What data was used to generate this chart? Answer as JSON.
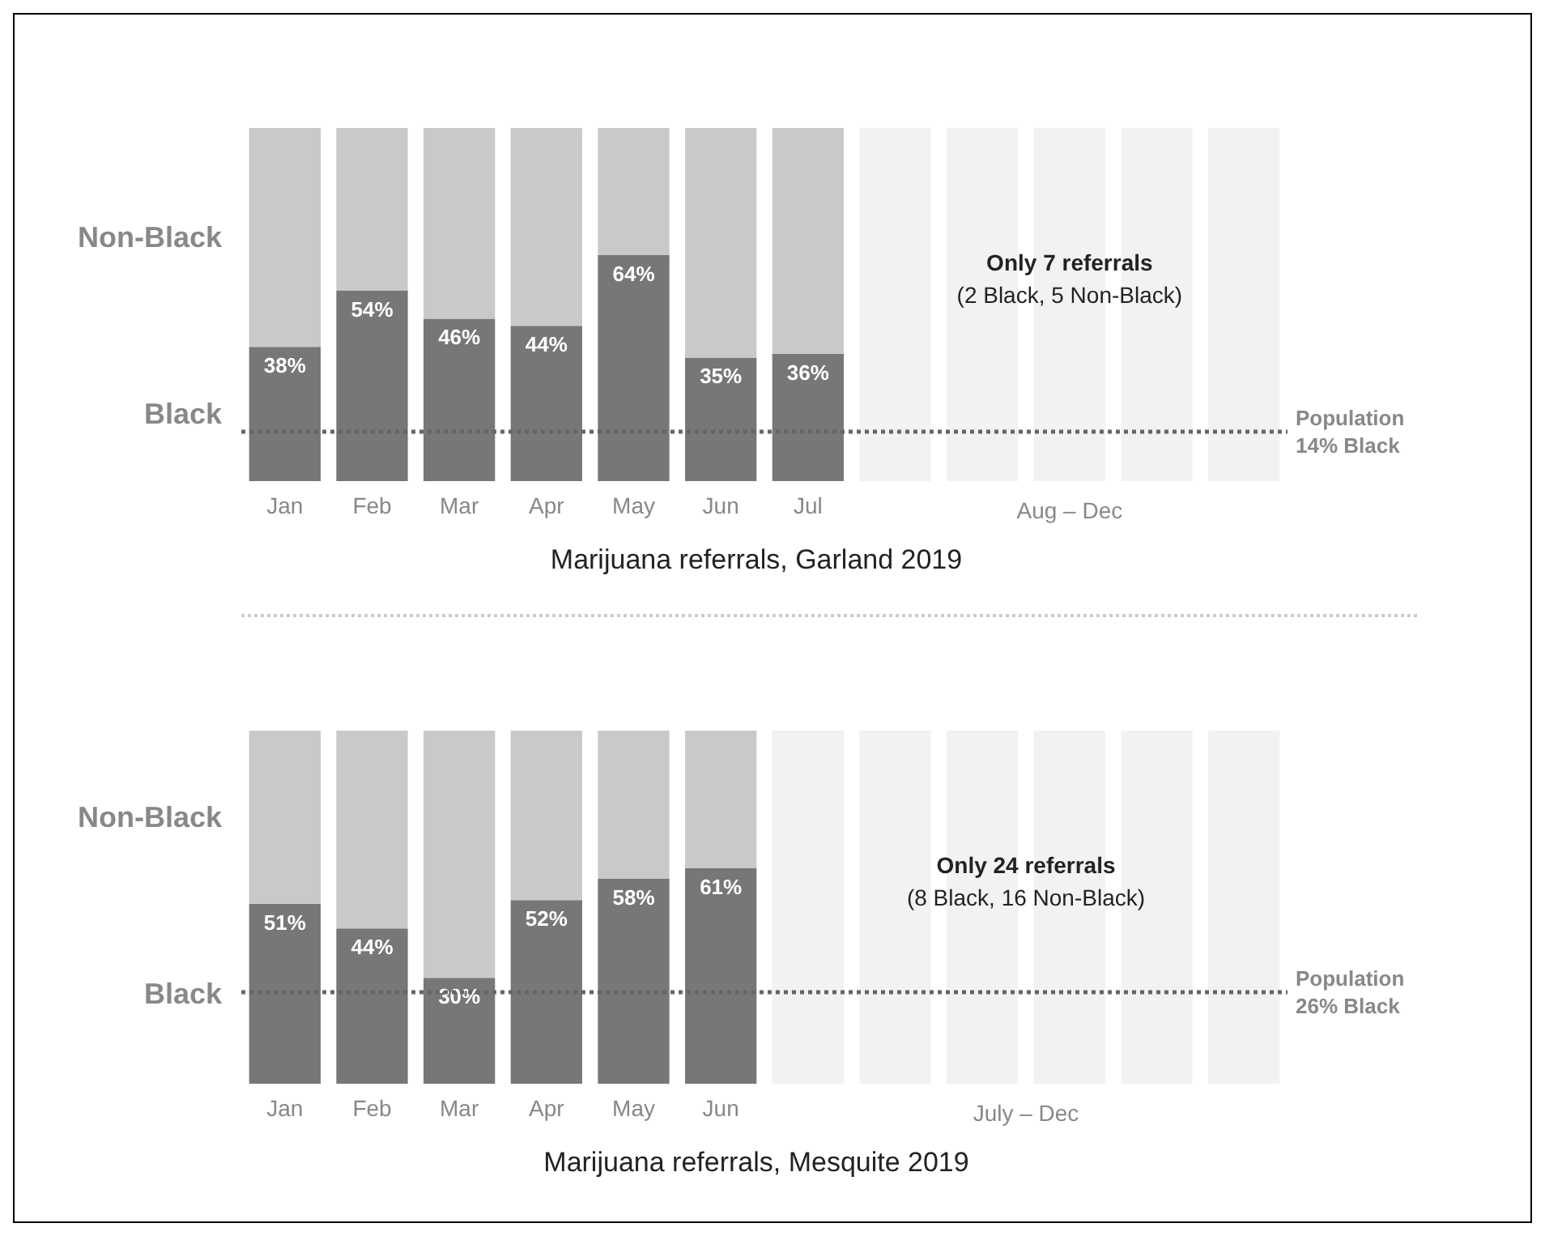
{
  "chart_data": [
    {
      "type": "bar",
      "title": "Marijuana referrals, Garland 2019",
      "categories": [
        "Jan",
        "Feb",
        "Mar",
        "Apr",
        "May",
        "Jun",
        "Jul",
        null,
        null,
        null,
        null,
        null
      ],
      "stacked": true,
      "ylim": [
        0,
        100
      ],
      "tick_labels": "x",
      "grid": false,
      "legend": false,
      "series": [
        {
          "name": "Black",
          "color": "#777777",
          "values": [
            38,
            54,
            46,
            44,
            64,
            35,
            36,
            null,
            null,
            null,
            null,
            null
          ],
          "value_labels": [
            "38%",
            "54%",
            "46%",
            "44%",
            "64%",
            "35%",
            "36%",
            null,
            null,
            null,
            null,
            null
          ]
        },
        {
          "name": "Non-Black",
          "color": "#c9c9c9",
          "values": [
            62,
            46,
            54,
            56,
            36,
            65,
            64,
            null,
            null,
            null,
            null,
            null
          ]
        },
        {
          "color": "#f2f2f2",
          "values": [
            null,
            null,
            null,
            null,
            null,
            null,
            null,
            100,
            100,
            100,
            100,
            100
          ]
        }
      ],
      "ref_lines": [
        {
          "axis": "y",
          "value": 14,
          "label": "Population\n14% Black",
          "line_style": "dotted",
          "color": "#666666"
        }
      ],
      "annotations": [
        "Only 7 referrals\n(2 Black, 5 Non-Black)",
        "Aug – Dec"
      ]
    },
    {
      "type": "bar",
      "title": "Marijuana referrals, Mesquite 2019",
      "categories": [
        "Jan",
        "Feb",
        "Mar",
        "Apr",
        "May",
        "Jun",
        null,
        null,
        null,
        null,
        null,
        null
      ],
      "stacked": true,
      "ylim": [
        0,
        100
      ],
      "tick_labels": "x",
      "grid": false,
      "legend": false,
      "series": [
        {
          "name": "Black",
          "color": "#777777",
          "values": [
            51,
            44,
            30,
            52,
            58,
            61,
            null,
            null,
            null,
            null,
            null,
            null
          ],
          "value_labels": [
            "51%",
            "44%",
            "30%",
            "52%",
            "58%",
            "61%",
            null,
            null,
            null,
            null,
            null,
            null
          ]
        },
        {
          "name": "Non-Black",
          "color": "#c9c9c9",
          "values": [
            49,
            56,
            70,
            48,
            42,
            39,
            null,
            null,
            null,
            null,
            null,
            null
          ]
        },
        {
          "color": "#f2f2f2",
          "values": [
            null,
            null,
            null,
            null,
            null,
            null,
            100,
            100,
            100,
            100,
            100,
            100
          ]
        }
      ],
      "ref_lines": [
        {
          "axis": "y",
          "value": 26,
          "label": "Population\n26% Black",
          "line_style": "dotted",
          "color": "#666666"
        }
      ],
      "annotations": [
        "Only 24 referrals\n(8 Black, 16 Non-Black)",
        "July – Dec"
      ]
    }
  ]
}
